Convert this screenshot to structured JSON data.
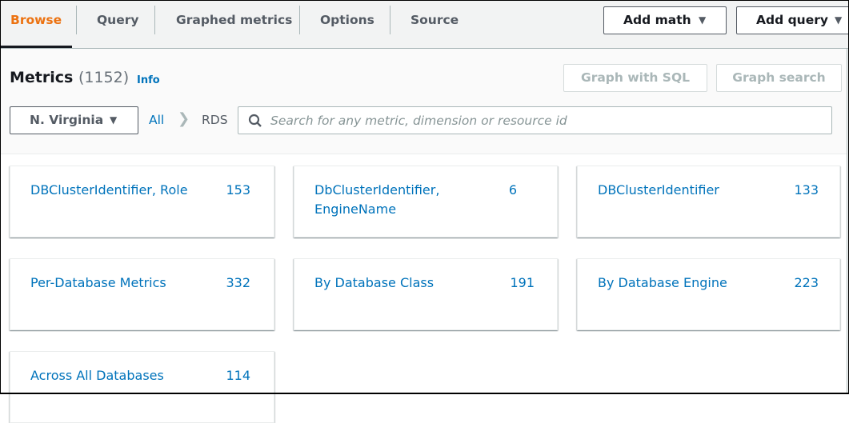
{
  "tabs": [
    {
      "label": "Browse",
      "active": true
    },
    {
      "label": "Query"
    },
    {
      "label": "Graphed metrics"
    },
    {
      "label": "Options"
    },
    {
      "label": "Source"
    }
  ],
  "toolbar": {
    "add_math": "Add math",
    "add_query": "Add query",
    "graph_sql": "Graph with SQL",
    "graph_search": "Graph search"
  },
  "metrics": {
    "title": "Metrics",
    "count": "(1152)",
    "info": "Info"
  },
  "region": {
    "label": "N. Virginia"
  },
  "breadcrumb": {
    "all": "All",
    "current": "RDS"
  },
  "search": {
    "placeholder": "Search for any metric, dimension or resource id",
    "value": ""
  },
  "cards": [
    {
      "name": "DBClusterIdentifier, Role",
      "count": "153"
    },
    {
      "name": "DbClusterIdentifier, EngineName",
      "count": "6"
    },
    {
      "name": "DBClusterIdentifier",
      "count": "133"
    },
    {
      "name": "Per-Database Metrics",
      "count": "332"
    },
    {
      "name": "By Database Class",
      "count": "191"
    },
    {
      "name": "By Database Engine",
      "count": "223"
    },
    {
      "name": "Across All Databases",
      "count": "114"
    }
  ],
  "colors": {
    "accent": "#ec7211",
    "link": "#0073bb"
  }
}
